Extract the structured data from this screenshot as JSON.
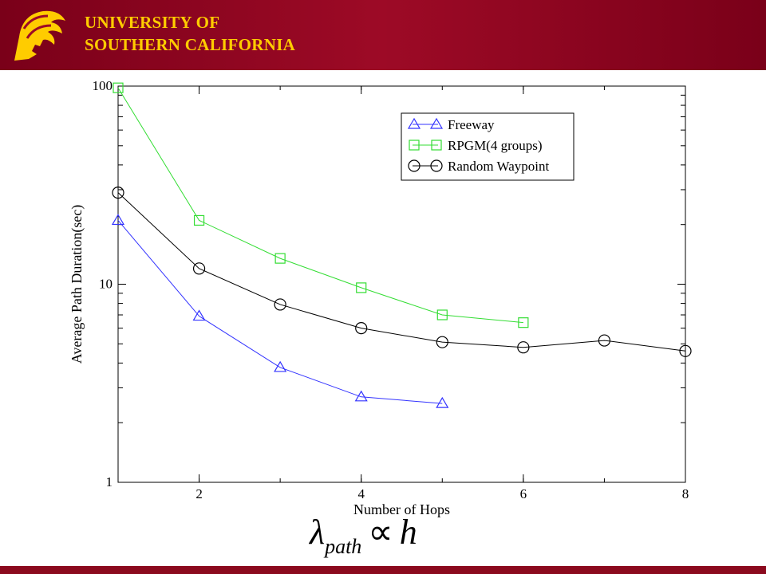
{
  "header": {
    "line1": "UNIVERSITY OF",
    "line2": "SOUTHERN CALIFORNIA",
    "bg_color": "#9d0a26",
    "text_color": "#ffcc00",
    "logo_icon": "trojan-head-icon"
  },
  "formula": {
    "lambda": "λ",
    "sub": "path",
    "prop": "∝",
    "h": "h"
  },
  "chart_data": {
    "type": "line",
    "xlabel": "Number of Hops",
    "ylabel": "Average Path Duration(sec)",
    "xlim": [
      1,
      8
    ],
    "ylim": [
      1,
      100
    ],
    "yscale": "log",
    "xticks": [
      2,
      4,
      6,
      8
    ],
    "yticks": [
      1,
      10,
      100
    ],
    "legend_position": "top-right",
    "series": [
      {
        "name": "Freeway",
        "marker": "triangle",
        "color": "#3333ff",
        "x": [
          1,
          2,
          3,
          4,
          5
        ],
        "y": [
          21,
          6.9,
          3.8,
          2.7,
          2.5
        ]
      },
      {
        "name": "RPGM(4 groups)",
        "marker": "square",
        "color": "#33dd33",
        "x": [
          1,
          2,
          3,
          4,
          5,
          6
        ],
        "y": [
          98,
          21,
          13.5,
          9.6,
          7.0,
          6.4
        ]
      },
      {
        "name": "Random Waypoint",
        "marker": "circle",
        "color": "#000000",
        "x": [
          1,
          2,
          3,
          4,
          5,
          6,
          7,
          8
        ],
        "y": [
          29,
          12,
          7.9,
          6.0,
          5.1,
          4.8,
          5.2,
          4.6
        ]
      }
    ]
  }
}
